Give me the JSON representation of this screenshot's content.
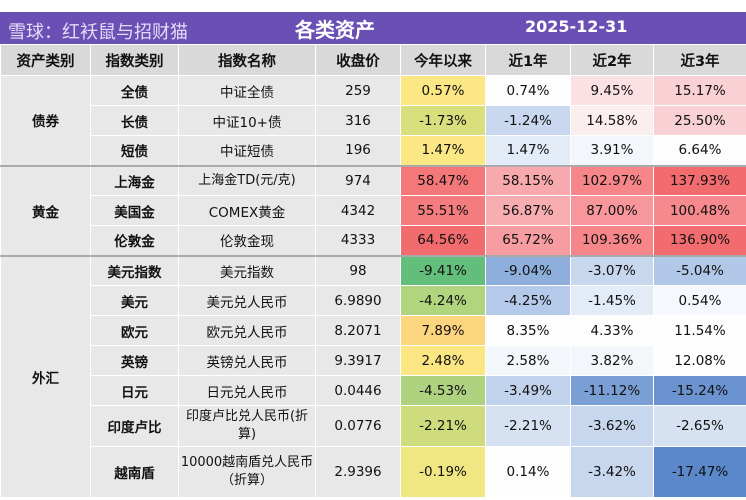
{
  "title": "各类资产",
  "date": "2025-12-31",
  "headers": [
    "资产类别",
    "指数类别",
    "指数名称",
    "收盘价",
    "今年以来",
    "近1年",
    "近2年",
    "近3年"
  ],
  "groups": [
    {
      "name": "债券",
      "rows": [
        {
          "type": "全债",
          "index": "中证全债",
          "close": "259",
          "vals": [
            "0.57%",
            "0.74%",
            "9.45%",
            "15.17%"
          ],
          "colors": [
            "#fbe784",
            "#fdfdfd",
            "#fbe1e3",
            "#f9d1d4"
          ]
        },
        {
          "type": "长债",
          "index": "中证10+债",
          "close": "316",
          "vals": [
            "-1.73%",
            "-1.24%",
            "14.58%",
            "25.50%"
          ],
          "colors": [
            "#d9df7c",
            "#c9d8ee",
            "#fbeeef",
            "#f9d1d4"
          ]
        },
        {
          "type": "短债",
          "index": "中证短债",
          "close": "196",
          "vals": [
            "1.47%",
            "1.47%",
            "3.91%",
            "6.64%"
          ],
          "colors": [
            "#fbe784",
            "#e2ebf6",
            "#f3f6fb",
            "#fdfdfd"
          ]
        }
      ]
    },
    {
      "name": "黄金",
      "rows": [
        {
          "type": "上海金",
          "index": "上海金TD(元/克)",
          "close": "974",
          "vals": [
            "58.47%",
            "58.15%",
            "102.97%",
            "137.93%"
          ],
          "colors": [
            "#f4777a",
            "#f8a9ad",
            "#f6868a",
            "#f26b6f"
          ]
        },
        {
          "type": "美国金",
          "index": "COMEX黄金",
          "close": "4342",
          "vals": [
            "55.51%",
            "56.87%",
            "87.00%",
            "100.48%"
          ],
          "colors": [
            "#f47c7f",
            "#f8adb1",
            "#f7979b",
            "#f6898d"
          ]
        },
        {
          "type": "伦敦金",
          "index": "伦敦金现",
          "close": "4333",
          "vals": [
            "64.56%",
            "65.72%",
            "109.36%",
            "136.90%"
          ],
          "colors": [
            "#f26b6f",
            "#f79da1",
            "#f6868a",
            "#f26b6f"
          ]
        }
      ]
    },
    {
      "name": "外汇",
      "rows": [
        {
          "type": "美元指数",
          "index": "美元指数",
          "close": "98",
          "vals": [
            "-9.41%",
            "-9.04%",
            "-3.07%",
            "-5.04%"
          ],
          "colors": [
            "#63be7b",
            "#8eaedb",
            "#c7d7ee",
            "#b2c8e8"
          ]
        },
        {
          "type": "美元",
          "index": "美元兑人民币",
          "close": "6.9890",
          "vals": [
            "-4.24%",
            "-4.25%",
            "-1.45%",
            "0.54%"
          ],
          "colors": [
            "#b1d47f",
            "#b5caea",
            "#e2ebf6",
            "#f5f8fc"
          ]
        },
        {
          "type": "欧元",
          "index": "欧元兑人民币",
          "close": "8.2071",
          "vals": [
            "7.89%",
            "8.35%",
            "4.33%",
            "11.54%"
          ],
          "colors": [
            "#fdd57f",
            "#fdfdfd",
            "#fdfdfd",
            "#fdfdfd"
          ]
        },
        {
          "type": "英镑",
          "index": "英镑兑人民币",
          "close": "9.3917",
          "vals": [
            "2.48%",
            "2.58%",
            "3.82%",
            "12.08%"
          ],
          "colors": [
            "#fce683",
            "#f3f6fb",
            "#f3f6fb",
            "#fdfdfd"
          ]
        },
        {
          "type": "日元",
          "index": "日元兑人民币",
          "close": "0.0446",
          "vals": [
            "-4.53%",
            "-3.49%",
            "-11.12%",
            "-15.24%"
          ],
          "colors": [
            "#aed27f",
            "#c1d3ec",
            "#7a9fd4",
            "#6a93cf"
          ]
        },
        {
          "type": "印度卢比",
          "index": "印度卢比兑人民币(折算)",
          "close": "0.0776",
          "vals": [
            "-2.21%",
            "-2.21%",
            "-3.62%",
            "-2.65%"
          ],
          "colors": [
            "#cfdc7d",
            "#d6e2f2",
            "#c7d7ee",
            "#d6e2f2"
          ]
        },
        {
          "type": "越南盾",
          "index": "10000越南盾兑人民币（折算）",
          "close": "2.9396",
          "vals": [
            "-0.19%",
            "0.14%",
            "-3.42%",
            "-17.47%"
          ],
          "colors": [
            "#f0e682",
            "#fdfdfd",
            "#c7d7ee",
            "#5a88ca"
          ]
        }
      ]
    }
  ],
  "watermark": "雪球：红袄鼠与招财猫"
}
